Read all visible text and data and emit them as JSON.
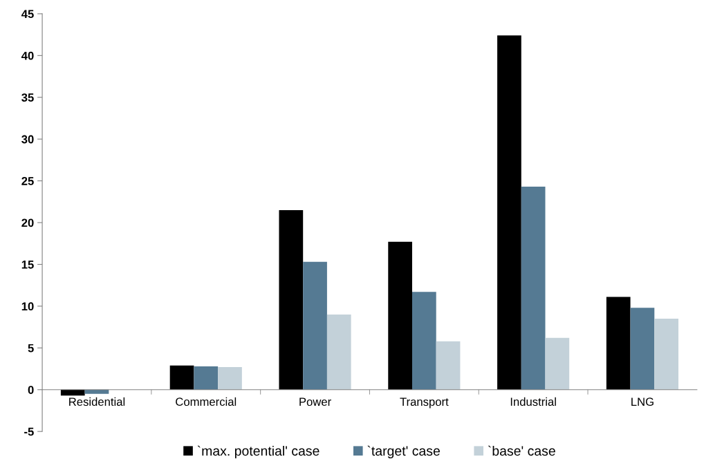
{
  "chart_data": {
    "type": "bar",
    "categories": [
      "Residential",
      "Commercial",
      "Power",
      "Transport",
      "Industrial",
      "LNG"
    ],
    "series": [
      {
        "name": "`max. potential' case",
        "color": "#000000",
        "values": [
          -0.7,
          2.9,
          21.5,
          17.7,
          42.4,
          11.1
        ]
      },
      {
        "name": "`target' case",
        "color": "#557a93",
        "values": [
          -0.5,
          2.8,
          15.3,
          11.7,
          24.3,
          9.8
        ]
      },
      {
        "name": "`base' case",
        "color": "#c3d1d9",
        "values": [
          0,
          2.7,
          9.0,
          5.8,
          6.2,
          8.5
        ]
      }
    ],
    "ylim": [
      -5,
      45
    ],
    "yticks": [
      -5,
      0,
      5,
      10,
      15,
      20,
      25,
      30,
      35,
      40,
      45
    ],
    "grid": false,
    "legend": "bottom"
  }
}
